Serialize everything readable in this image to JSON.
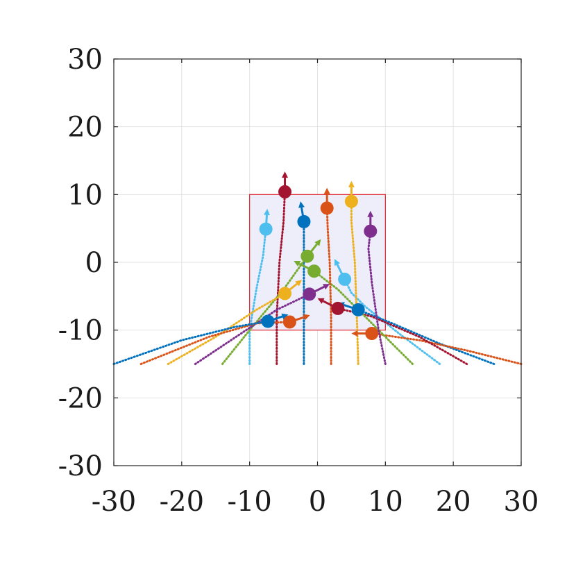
{
  "chart_data": {
    "type": "scatter",
    "title": "",
    "xlabel": "",
    "ylabel": "",
    "xlim": [
      -30,
      30
    ],
    "ylim": [
      -30,
      30
    ],
    "xticks": [
      -30,
      -20,
      -10,
      0,
      10,
      20,
      30
    ],
    "yticks": [
      -30,
      -20,
      -10,
      0,
      10,
      20,
      30
    ],
    "xtick_labels": [
      "-30",
      "-20",
      "-10",
      "0",
      "10",
      "20",
      "30"
    ],
    "ytick_labels": [
      "-30",
      "-20",
      "-10",
      "0",
      "10",
      "20",
      "30"
    ],
    "grid": true,
    "box": true,
    "region": {
      "x": [
        -10,
        10
      ],
      "y": [
        -10,
        10
      ],
      "edge_color": "#e0242f",
      "fill_color": "#eeeefa"
    },
    "series": [
      {
        "color": "#4dbeee",
        "start": [
          18,
          -15
        ],
        "points": [
          [
            18,
            -15
          ],
          [
            12,
            -10.5
          ],
          [
            7,
            -6.5
          ],
          [
            5,
            -4.5
          ],
          [
            4,
            -2.5
          ]
        ],
        "end": [
          4,
          -2.5
        ],
        "heading": [
          -1.5,
          3
        ]
      },
      {
        "color": "#0072bd",
        "start": [
          26,
          -15
        ],
        "points": [
          [
            26,
            -15
          ],
          [
            18,
            -12
          ],
          [
            11,
            -9
          ],
          [
            6,
            -7
          ]
        ],
        "end": [
          6,
          -7
        ],
        "heading": [
          -3,
          1
        ]
      },
      {
        "color": "#d95319",
        "start": [
          30,
          -15
        ],
        "points": [
          [
            30,
            -15
          ],
          [
            22,
            -13
          ],
          [
            15,
            -11.5
          ],
          [
            8,
            -10.5
          ]
        ],
        "end": [
          8,
          -10.5
        ],
        "heading": [
          -3,
          0
        ]
      },
      {
        "color": "#a2142f",
        "start": [
          22,
          -15
        ],
        "points": [
          [
            22,
            -15
          ],
          [
            15,
            -11
          ],
          [
            8,
            -8
          ],
          [
            3,
            -6.8
          ]
        ],
        "end": [
          3,
          -6.8
        ],
        "heading": [
          -3,
          1.5
        ]
      },
      {
        "color": "#77ac30",
        "start": [
          14,
          -15
        ],
        "points": [
          [
            14,
            -15
          ],
          [
            8,
            -9
          ],
          [
            3,
            -4
          ],
          [
            -0.5,
            -1.3
          ]
        ],
        "end": [
          -0.5,
          -1.3
        ],
        "heading": [
          -3,
          1.5
        ]
      },
      {
        "color": "#7e2f8e",
        "start": [
          10,
          -15
        ],
        "points": [
          [
            10,
            -15
          ],
          [
            9,
            -10
          ],
          [
            8,
            -3
          ],
          [
            7.5,
            2
          ],
          [
            7.8,
            4.6
          ]
        ],
        "end": [
          7.8,
          4.6
        ],
        "heading": [
          0,
          3
        ]
      },
      {
        "color": "#edb120",
        "start": [
          6,
          -15
        ],
        "points": [
          [
            6,
            -15
          ],
          [
            5.8,
            -8
          ],
          [
            5.5,
            0
          ],
          [
            5,
            6
          ],
          [
            5,
            9
          ]
        ],
        "end": [
          5,
          9
        ],
        "heading": [
          0,
          3
        ]
      },
      {
        "color": "#d95319",
        "start": [
          2,
          -15
        ],
        "points": [
          [
            2,
            -15
          ],
          [
            2,
            -8
          ],
          [
            1.8,
            0
          ],
          [
            1.5,
            5
          ],
          [
            1.4,
            8
          ]
        ],
        "end": [
          1.4,
          8
        ],
        "heading": [
          0,
          3
        ]
      },
      {
        "color": "#0072bd",
        "start": [
          -2,
          -15
        ],
        "points": [
          [
            -2,
            -15
          ],
          [
            -2,
            -8
          ],
          [
            -2,
            -2
          ],
          [
            -2,
            3
          ],
          [
            -2,
            6
          ]
        ],
        "end": [
          -2,
          6
        ],
        "heading": [
          -0.5,
          3
        ]
      },
      {
        "color": "#a2142f",
        "start": [
          -6,
          -15
        ],
        "points": [
          [
            -6,
            -15
          ],
          [
            -6,
            -8
          ],
          [
            -5.6,
            0
          ],
          [
            -5,
            6
          ],
          [
            -4.8,
            10.4
          ]
        ],
        "end": [
          -4.8,
          10.4
        ],
        "heading": [
          0,
          3
        ]
      },
      {
        "color": "#4dbeee",
        "start": [
          -10,
          -15
        ],
        "points": [
          [
            -10,
            -15
          ],
          [
            -10,
            -10
          ],
          [
            -9,
            -4
          ],
          [
            -8,
            1
          ],
          [
            -7.6,
            4.9
          ]
        ],
        "end": [
          -7.6,
          4.9
        ],
        "heading": [
          0.2,
          3
        ]
      },
      {
        "color": "#77ac30",
        "start": [
          -14,
          -15
        ],
        "points": [
          [
            -14,
            -15
          ],
          [
            -10,
            -10
          ],
          [
            -5,
            -4
          ],
          [
            -1.5,
            0.9
          ]
        ],
        "end": [
          -1.5,
          0.9
        ],
        "heading": [
          2,
          2.5
        ]
      },
      {
        "color": "#7e2f8e",
        "start": [
          -18,
          -15
        ],
        "points": [
          [
            -18,
            -15
          ],
          [
            -12,
            -11
          ],
          [
            -6,
            -7
          ],
          [
            -1.2,
            -4.7
          ]
        ],
        "end": [
          -1.2,
          -4.7
        ],
        "heading": [
          3,
          1.5
        ]
      },
      {
        "color": "#edb120",
        "start": [
          -22,
          -15
        ],
        "points": [
          [
            -22,
            -15
          ],
          [
            -15,
            -11
          ],
          [
            -9,
            -7
          ],
          [
            -4.8,
            -4.6
          ]
        ],
        "end": [
          -4.8,
          -4.6
        ],
        "heading": [
          2.5,
          2
        ]
      },
      {
        "color": "#d95319",
        "start": [
          -26,
          -15
        ],
        "points": [
          [
            -26,
            -15
          ],
          [
            -16,
            -11
          ],
          [
            -9,
            -9
          ],
          [
            -4.1,
            -8.8
          ]
        ],
        "end": [
          -4.1,
          -8.8
        ],
        "heading": [
          3,
          1
        ]
      },
      {
        "color": "#0072bd",
        "start": [
          -30,
          -15
        ],
        "points": [
          [
            -30,
            -15
          ],
          [
            -20,
            -11.5
          ],
          [
            -12,
            -9.5
          ],
          [
            -7.3,
            -8.7
          ]
        ],
        "end": [
          -7.3,
          -8.7
        ],
        "heading": [
          3,
          1
        ]
      }
    ]
  }
}
